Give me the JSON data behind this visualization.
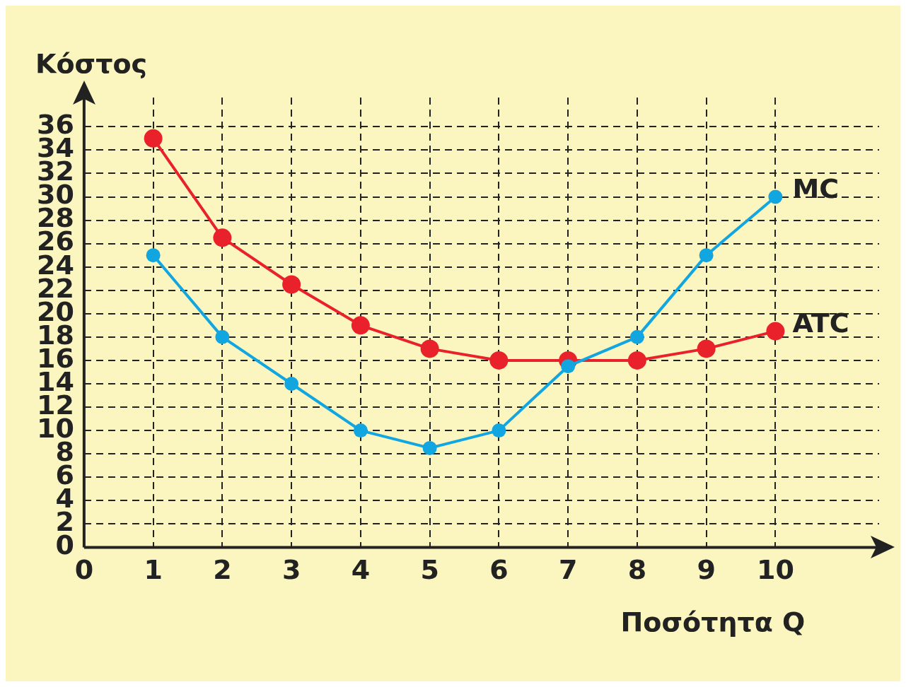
{
  "chart_data": {
    "type": "line",
    "xlabel": "Ποσότητα Q",
    "ylabel": "Κόστος",
    "x": [
      1,
      2,
      3,
      4,
      5,
      6,
      7,
      8,
      9,
      10
    ],
    "series": [
      {
        "name": "MC",
        "color": "#12a6e0",
        "values": [
          25,
          18,
          14,
          10,
          8.5,
          10,
          15.5,
          18,
          25,
          30
        ]
      },
      {
        "name": "ATC",
        "color": "#e8212b",
        "values": [
          35,
          26.5,
          22.5,
          19,
          17,
          16,
          16,
          16,
          17,
          18.5
        ]
      }
    ],
    "xlim": [
      0,
      11.5
    ],
    "xticks": [
      0,
      1,
      2,
      3,
      4,
      5,
      6,
      7,
      8,
      9,
      10
    ],
    "ylim": [
      0,
      38.5
    ],
    "yticks": [
      0,
      2,
      4,
      6,
      8,
      10,
      12,
      14,
      16,
      18,
      20,
      22,
      24,
      26,
      28,
      30,
      32,
      34,
      36
    ],
    "grid": true,
    "legend": false,
    "marker": "circle",
    "line_style": "solid"
  }
}
